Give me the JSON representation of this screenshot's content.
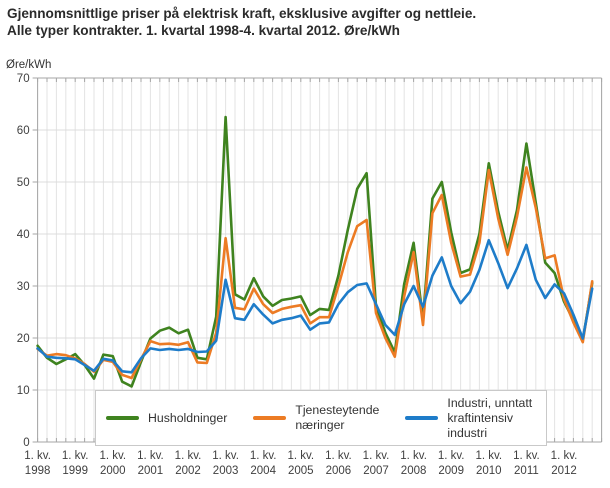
{
  "title": {
    "line1": "Gjennomsnittlige priser på elektrisk kraft, eksklusive avgifter og nettleie.",
    "line2": "Alle typer kontrakter. 1. kvartal 1998-4. kvartal 2012. Øre/kWh"
  },
  "chart_data": {
    "type": "line",
    "y_axis_unit": "Øre/kWh",
    "ylim": [
      0,
      70
    ],
    "y_ticks": [
      0,
      10,
      20,
      30,
      40,
      50,
      60,
      70
    ],
    "x_axis": {
      "quarter_label": "1. kv.",
      "years": [
        "1998",
        "1999",
        "2000",
        "2001",
        "2002",
        "2003",
        "2004",
        "2005",
        "2006",
        "2007",
        "2008",
        "2009",
        "2010",
        "2011",
        "2012"
      ],
      "quarters_total": 60
    },
    "grid": "on",
    "legend_position": "bottom-inside",
    "colors": {
      "grid": "#e3e3e3",
      "frame": "#a6a6a6",
      "text": "#404040"
    },
    "series": [
      {
        "name": "Husholdninger",
        "color": "#3f831f",
        "values": [
          18.5,
          16.2,
          15.0,
          15.9,
          16.9,
          14.8,
          12.2,
          16.8,
          16.5,
          11.6,
          10.7,
          15.4,
          19.9,
          21.4,
          22.0,
          20.9,
          21.6,
          16.2,
          15.9,
          24.1,
          62.5,
          28.4,
          27.4,
          31.5,
          28.0,
          26.2,
          27.3,
          27.6,
          28.0,
          24.4,
          25.6,
          25.4,
          32.0,
          40.8,
          48.7,
          51.7,
          26.0,
          21.0,
          17.2,
          30.4,
          38.3,
          23.5,
          46.8,
          50.0,
          40.3,
          32.5,
          33.2,
          40.0,
          53.6,
          44.3,
          36.9,
          44.6,
          57.4,
          46.0,
          34.5,
          32.5,
          27.0,
          23.4,
          19.6,
          30.6
        ]
      },
      {
        "name": "Tjenesteytende næringer",
        "color": "#ec7b24",
        "values": [
          17.9,
          16.6,
          16.9,
          16.7,
          16.1,
          15.0,
          13.5,
          15.8,
          15.4,
          12.9,
          12.3,
          15.9,
          19.4,
          18.8,
          18.9,
          18.7,
          19.2,
          15.3,
          15.2,
          21.0,
          39.2,
          25.8,
          25.5,
          29.5,
          26.5,
          24.8,
          25.6,
          26.0,
          26.3,
          22.8,
          24.0,
          24.0,
          30.0,
          36.5,
          41.5,
          42.7,
          24.8,
          20.0,
          16.4,
          28.0,
          36.5,
          22.5,
          44.0,
          47.5,
          38.3,
          31.8,
          32.2,
          38.3,
          52.3,
          43.0,
          36.0,
          43.3,
          52.8,
          45.0,
          35.3,
          35.9,
          27.5,
          23.0,
          19.2,
          30.9
        ]
      },
      {
        "name": "Industri, unntatt kraftintensiv industri",
        "color": "#1e7cc9",
        "values": [
          18.0,
          16.4,
          16.2,
          16.1,
          15.9,
          14.8,
          13.7,
          16.0,
          15.7,
          13.6,
          13.4,
          16.1,
          18.0,
          17.7,
          17.9,
          17.7,
          17.9,
          17.3,
          17.4,
          19.5,
          31.2,
          23.8,
          23.5,
          26.5,
          24.5,
          22.8,
          23.5,
          23.8,
          24.3,
          21.6,
          22.8,
          23.0,
          26.5,
          28.8,
          30.2,
          30.5,
          26.5,
          22.5,
          20.6,
          26.5,
          30.0,
          26.0,
          32.0,
          35.5,
          30.0,
          26.7,
          28.9,
          33.1,
          38.8,
          34.4,
          29.6,
          33.4,
          37.9,
          31.2,
          27.7,
          30.3,
          28.6,
          24.5,
          19.9,
          29.5
        ]
      }
    ]
  }
}
